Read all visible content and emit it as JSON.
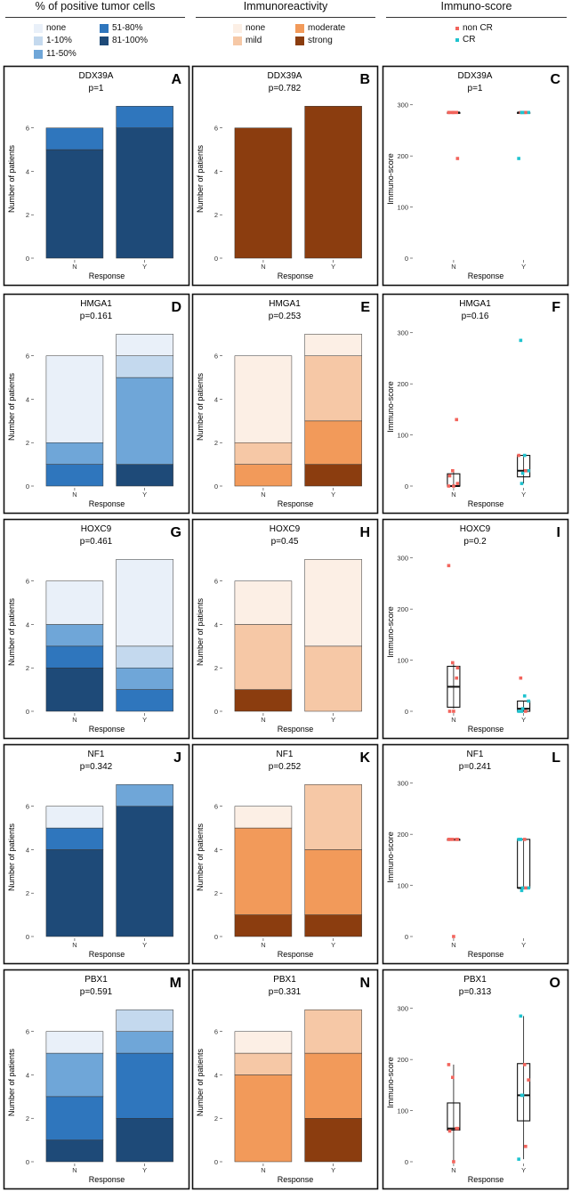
{
  "header": {
    "col1": "% of positive tumor cells",
    "col2": "Immunoreactivity",
    "col3": "Immuno-score"
  },
  "colors": {
    "pos": {
      "none": "#e9f0f9",
      "1-10%": "#c4d9ee",
      "11-50%": "#6fa6d8",
      "51-80%": "#2f76bd",
      "81-100%": "#1e4a78"
    },
    "imm": {
      "none": "#fcefe5",
      "mild": "#f6c8a6",
      "moderate": "#f29a5a",
      "strong": "#8b3d0f"
    },
    "nonCR": "#f2645c",
    "CR": "#1fc3cf"
  },
  "legend": {
    "pos": [
      {
        "label": "none",
        "key": "none"
      },
      {
        "label": "1-10%",
        "key": "1-10%"
      },
      {
        "label": "11-50%",
        "key": "11-50%"
      },
      {
        "label": "51-80%",
        "key": "51-80%"
      },
      {
        "label": "81-100%",
        "key": "81-100%"
      }
    ],
    "imm": [
      {
        "label": "none",
        "key": "none"
      },
      {
        "label": "mild",
        "key": "mild"
      },
      {
        "label": "moderate",
        "key": "moderate"
      },
      {
        "label": "strong",
        "key": "strong"
      }
    ],
    "score": [
      {
        "label": "non CR",
        "key": "nonCR"
      },
      {
        "label": "CR",
        "key": "CR"
      }
    ]
  },
  "chart_data": [
    {
      "panel": "A",
      "type": "bar",
      "kind": "pos",
      "gene": "DDX39A",
      "p": "p=1",
      "categories": [
        "N",
        "Y"
      ],
      "xlabel": "Response",
      "ylabel": "Number of patients",
      "ylim": [
        0,
        7.3
      ],
      "yticks": [
        0,
        2,
        4,
        6
      ],
      "series": [
        {
          "name": "81-100%",
          "values": [
            5,
            6
          ]
        },
        {
          "name": "51-80%",
          "values": [
            1,
            1
          ]
        }
      ]
    },
    {
      "panel": "B",
      "type": "bar",
      "kind": "imm",
      "gene": "DDX39A",
      "p": "p=0.782",
      "categories": [
        "N",
        "Y"
      ],
      "xlabel": "Response",
      "ylabel": "Number of patients",
      "ylim": [
        0,
        7.3
      ],
      "yticks": [
        0,
        2,
        4,
        6
      ],
      "series": [
        {
          "name": "strong",
          "values": [
            6,
            7
          ]
        }
      ]
    },
    {
      "panel": "C",
      "type": "scatter",
      "gene": "DDX39A",
      "p": "p=1",
      "categories": [
        "N",
        "Y"
      ],
      "xlabel": "Response",
      "ylabel": "Immuno-score",
      "ylim": [
        0,
        310
      ],
      "yticks": [
        0,
        100,
        200,
        300
      ],
      "box": [
        {
          "min": 285,
          "q1": 285,
          "median": 285,
          "q3": 285,
          "max": 285
        },
        {
          "min": 285,
          "q1": 285,
          "median": 285,
          "q3": 285,
          "max": 285
        }
      ],
      "points": [
        {
          "x": 0,
          "y": 285,
          "g": "nonCR"
        },
        {
          "x": 0,
          "y": 285,
          "g": "nonCR"
        },
        {
          "x": 0,
          "y": 285,
          "g": "nonCR"
        },
        {
          "x": 0,
          "y": 285,
          "g": "nonCR"
        },
        {
          "x": 0,
          "y": 285,
          "g": "nonCR"
        },
        {
          "x": 0,
          "y": 195,
          "g": "nonCR"
        },
        {
          "x": 1,
          "y": 285,
          "g": "nonCR"
        },
        {
          "x": 1,
          "y": 285,
          "g": "CR"
        },
        {
          "x": 1,
          "y": 285,
          "g": "CR"
        },
        {
          "x": 1,
          "y": 285,
          "g": "CR"
        },
        {
          "x": 1,
          "y": 285,
          "g": "nonCR"
        },
        {
          "x": 1,
          "y": 195,
          "g": "CR"
        },
        {
          "x": 1,
          "y": 285,
          "g": "CR"
        }
      ]
    },
    {
      "panel": "D",
      "type": "bar",
      "kind": "pos",
      "gene": "HMGA1",
      "p": "p=0.161",
      "categories": [
        "N",
        "Y"
      ],
      "xlabel": "Response",
      "ylabel": "Number of patients",
      "ylim": [
        0,
        7.3
      ],
      "yticks": [
        0,
        2,
        4,
        6
      ],
      "series": [
        {
          "name": "81-100%",
          "values": [
            0,
            1
          ]
        },
        {
          "name": "51-80%",
          "values": [
            1,
            0
          ]
        },
        {
          "name": "11-50%",
          "values": [
            1,
            4
          ]
        },
        {
          "name": "1-10%",
          "values": [
            0,
            1
          ]
        },
        {
          "name": "none",
          "values": [
            4,
            1
          ]
        }
      ]
    },
    {
      "panel": "E",
      "type": "bar",
      "kind": "imm",
      "gene": "HMGA1",
      "p": "p=0.253",
      "categories": [
        "N",
        "Y"
      ],
      "xlabel": "Response",
      "ylabel": "Number of patients",
      "ylim": [
        0,
        7.3
      ],
      "yticks": [
        0,
        2,
        4,
        6
      ],
      "series": [
        {
          "name": "strong",
          "values": [
            0,
            1
          ]
        },
        {
          "name": "moderate",
          "values": [
            1,
            2
          ]
        },
        {
          "name": "mild",
          "values": [
            1,
            3
          ]
        },
        {
          "name": "none",
          "values": [
            4,
            1
          ]
        }
      ]
    },
    {
      "panel": "F",
      "type": "scatter",
      "gene": "HMGA1",
      "p": "p=0.16",
      "categories": [
        "N",
        "Y"
      ],
      "xlabel": "Response",
      "ylabel": "Immuno-score",
      "ylim": [
        0,
        310
      ],
      "yticks": [
        0,
        100,
        200,
        300
      ],
      "box": [
        {
          "min": 0,
          "q1": 0,
          "median": 0,
          "q3": 24,
          "max": 30
        },
        {
          "min": 5,
          "q1": 18,
          "median": 30,
          "q3": 60,
          "max": 60
        }
      ],
      "points": [
        {
          "x": 0,
          "y": 0,
          "g": "nonCR"
        },
        {
          "x": 0,
          "y": 30,
          "g": "nonCR"
        },
        {
          "x": 0,
          "y": 130,
          "g": "nonCR"
        },
        {
          "x": 0,
          "y": 20,
          "g": "nonCR"
        },
        {
          "x": 0,
          "y": 0,
          "g": "nonCR"
        },
        {
          "x": 0,
          "y": 5,
          "g": "nonCR"
        },
        {
          "x": 1,
          "y": 285,
          "g": "CR"
        },
        {
          "x": 1,
          "y": 60,
          "g": "CR"
        },
        {
          "x": 1,
          "y": 30,
          "g": "CR"
        },
        {
          "x": 1,
          "y": 5,
          "g": "CR"
        },
        {
          "x": 1,
          "y": 30,
          "g": "nonCR"
        },
        {
          "x": 1,
          "y": 60,
          "g": "nonCR"
        },
        {
          "x": 1,
          "y": 25,
          "g": "CR"
        }
      ]
    },
    {
      "panel": "G",
      "type": "bar",
      "kind": "pos",
      "gene": "HOXC9",
      "p": "p=0.461",
      "categories": [
        "N",
        "Y"
      ],
      "xlabel": "Response",
      "ylabel": "Number of patients",
      "ylim": [
        0,
        7.3
      ],
      "yticks": [
        0,
        2,
        4,
        6
      ],
      "series": [
        {
          "name": "81-100%",
          "values": [
            2,
            0
          ]
        },
        {
          "name": "51-80%",
          "values": [
            1,
            1
          ]
        },
        {
          "name": "11-50%",
          "values": [
            1,
            1
          ]
        },
        {
          "name": "1-10%",
          "values": [
            0,
            1
          ]
        },
        {
          "name": "none",
          "values": [
            2,
            4
          ]
        }
      ]
    },
    {
      "panel": "H",
      "type": "bar",
      "kind": "imm",
      "gene": "HOXC9",
      "p": "p=0.45",
      "categories": [
        "N",
        "Y"
      ],
      "xlabel": "Response",
      "ylabel": "Number of patients",
      "ylim": [
        0,
        7.3
      ],
      "yticks": [
        0,
        2,
        4,
        6
      ],
      "series": [
        {
          "name": "strong",
          "values": [
            1,
            0
          ]
        },
        {
          "name": "mild",
          "values": [
            3,
            3
          ]
        },
        {
          "name": "none",
          "values": [
            2,
            4
          ]
        }
      ]
    },
    {
      "panel": "I",
      "type": "scatter",
      "gene": "HOXC9",
      "p": "p=0.2",
      "categories": [
        "N",
        "Y"
      ],
      "xlabel": "Response",
      "ylabel": "Immuno-score",
      "ylim": [
        0,
        310
      ],
      "yticks": [
        0,
        100,
        200,
        300
      ],
      "box": [
        {
          "min": 5,
          "q1": 8,
          "median": 48,
          "q3": 88,
          "max": 95
        },
        {
          "min": 0,
          "q1": 0,
          "median": 5,
          "q3": 20,
          "max": 20
        }
      ],
      "points": [
        {
          "x": 0,
          "y": 285,
          "g": "nonCR"
        },
        {
          "x": 0,
          "y": 95,
          "g": "nonCR"
        },
        {
          "x": 0,
          "y": 65,
          "g": "nonCR"
        },
        {
          "x": 0,
          "y": 0,
          "g": "nonCR"
        },
        {
          "x": 0,
          "y": 0,
          "g": "nonCR"
        },
        {
          "x": 0,
          "y": 85,
          "g": "nonCR"
        },
        {
          "x": 1,
          "y": 65,
          "g": "nonCR"
        },
        {
          "x": 1,
          "y": 30,
          "g": "CR"
        },
        {
          "x": 1,
          "y": 20,
          "g": "CR"
        },
        {
          "x": 1,
          "y": 0,
          "g": "CR"
        },
        {
          "x": 1,
          "y": 0,
          "g": "nonCR"
        },
        {
          "x": 1,
          "y": 0,
          "g": "CR"
        },
        {
          "x": 1,
          "y": 5,
          "g": "CR"
        }
      ]
    },
    {
      "panel": "J",
      "type": "bar",
      "kind": "pos",
      "gene": "NF1",
      "p": "p=0.342",
      "categories": [
        "N",
        "Y"
      ],
      "xlabel": "Response",
      "ylabel": "Number of patients",
      "ylim": [
        0,
        7.3
      ],
      "yticks": [
        0,
        2,
        4,
        6
      ],
      "series": [
        {
          "name": "81-100%",
          "values": [
            4,
            6
          ]
        },
        {
          "name": "51-80%",
          "values": [
            1,
            0
          ]
        },
        {
          "name": "11-50%",
          "values": [
            0,
            1
          ]
        },
        {
          "name": "none",
          "values": [
            1,
            0
          ]
        }
      ]
    },
    {
      "panel": "K",
      "type": "bar",
      "kind": "imm",
      "gene": "NF1",
      "p": "p=0.252",
      "categories": [
        "N",
        "Y"
      ],
      "xlabel": "Response",
      "ylabel": "Number of patients",
      "ylim": [
        0,
        7.3
      ],
      "yticks": [
        0,
        2,
        4,
        6
      ],
      "series": [
        {
          "name": "strong",
          "values": [
            1,
            1
          ]
        },
        {
          "name": "moderate",
          "values": [
            4,
            3
          ]
        },
        {
          "name": "mild",
          "values": [
            0,
            3
          ]
        },
        {
          "name": "none",
          "values": [
            1,
            0
          ]
        }
      ]
    },
    {
      "panel": "L",
      "type": "scatter",
      "gene": "NF1",
      "p": "p=0.241",
      "categories": [
        "N",
        "Y"
      ],
      "xlabel": "Response",
      "ylabel": "Immuno-score",
      "ylim": [
        0,
        310
      ],
      "yticks": [
        0,
        100,
        200,
        300
      ],
      "box": [
        {
          "min": 190,
          "q1": 190,
          "median": 190,
          "q3": 190,
          "max": 190
        },
        {
          "min": 95,
          "q1": 95,
          "median": 95,
          "q3": 190,
          "max": 190
        }
      ],
      "points": [
        {
          "x": 0,
          "y": 190,
          "g": "nonCR"
        },
        {
          "x": 0,
          "y": 190,
          "g": "nonCR"
        },
        {
          "x": 0,
          "y": 190,
          "g": "nonCR"
        },
        {
          "x": 0,
          "y": 190,
          "g": "nonCR"
        },
        {
          "x": 0,
          "y": 0,
          "g": "nonCR"
        },
        {
          "x": 0,
          "y": 190,
          "g": "nonCR"
        },
        {
          "x": 1,
          "y": 190,
          "g": "CR"
        },
        {
          "x": 1,
          "y": 190,
          "g": "nonCR"
        },
        {
          "x": 1,
          "y": 95,
          "g": "CR"
        },
        {
          "x": 1,
          "y": 90,
          "g": "CR"
        },
        {
          "x": 1,
          "y": 95,
          "g": "nonCR"
        },
        {
          "x": 1,
          "y": 190,
          "g": "CR"
        },
        {
          "x": 1,
          "y": 95,
          "g": "CR"
        }
      ]
    },
    {
      "panel": "M",
      "type": "bar",
      "kind": "pos",
      "gene": "PBX1",
      "p": "p=0.591",
      "categories": [
        "N",
        "Y"
      ],
      "xlabel": "Response",
      "ylabel": "Number of patients",
      "ylim": [
        0,
        7.3
      ],
      "yticks": [
        0,
        2,
        4,
        6
      ],
      "series": [
        {
          "name": "81-100%",
          "values": [
            1,
            2
          ]
        },
        {
          "name": "51-80%",
          "values": [
            2,
            3
          ]
        },
        {
          "name": "11-50%",
          "values": [
            2,
            1
          ]
        },
        {
          "name": "1-10%",
          "values": [
            0,
            1
          ]
        },
        {
          "name": "none",
          "values": [
            1,
            0
          ]
        }
      ]
    },
    {
      "panel": "N",
      "type": "bar",
      "kind": "imm",
      "gene": "PBX1",
      "p": "p=0.331",
      "categories": [
        "N",
        "Y"
      ],
      "xlabel": "Response",
      "ylabel": "Number of patients",
      "ylim": [
        0,
        7.3
      ],
      "yticks": [
        0,
        2,
        4,
        6
      ],
      "series": [
        {
          "name": "strong",
          "values": [
            0,
            2
          ]
        },
        {
          "name": "moderate",
          "values": [
            4,
            3
          ]
        },
        {
          "name": "mild",
          "values": [
            1,
            2
          ]
        },
        {
          "name": "none",
          "values": [
            1,
            0
          ]
        }
      ]
    },
    {
      "panel": "O",
      "type": "scatter",
      "gene": "PBX1",
      "p": "p=0.313",
      "categories": [
        "N",
        "Y"
      ],
      "xlabel": "Response",
      "ylabel": "Immuno-score",
      "ylim": [
        0,
        310
      ],
      "yticks": [
        0,
        100,
        200,
        300
      ],
      "box": [
        {
          "min": 0,
          "q1": 62,
          "median": 65,
          "q3": 115,
          "max": 190
        },
        {
          "min": 5,
          "q1": 80,
          "median": 130,
          "q3": 192,
          "max": 285
        }
      ],
      "points": [
        {
          "x": 0,
          "y": 190,
          "g": "nonCR"
        },
        {
          "x": 0,
          "y": 165,
          "g": "nonCR"
        },
        {
          "x": 0,
          "y": 65,
          "g": "nonCR"
        },
        {
          "x": 0,
          "y": 60,
          "g": "nonCR"
        },
        {
          "x": 0,
          "y": 0,
          "g": "nonCR"
        },
        {
          "x": 0,
          "y": 65,
          "g": "nonCR"
        },
        {
          "x": 1,
          "y": 285,
          "g": "CR"
        },
        {
          "x": 1,
          "y": 190,
          "g": "nonCR"
        },
        {
          "x": 1,
          "y": 160,
          "g": "nonCR"
        },
        {
          "x": 1,
          "y": 130,
          "g": "CR"
        },
        {
          "x": 1,
          "y": 30,
          "g": "nonCR"
        },
        {
          "x": 1,
          "y": 5,
          "g": "CR"
        },
        {
          "x": 1,
          "y": 130,
          "g": "CR"
        }
      ]
    }
  ]
}
